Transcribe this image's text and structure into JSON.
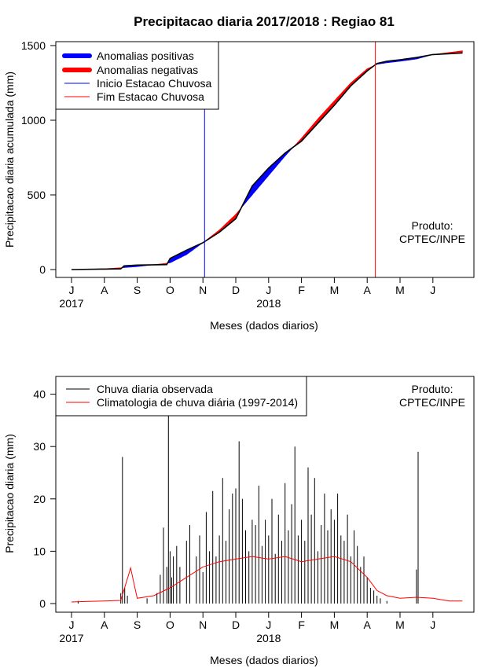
{
  "title": "Precipitacao diaria 2017/2018 : Regiao 81",
  "chart_data": [
    {
      "id": "top",
      "type": "area",
      "ylabel": "Precipitacao diaria acumulada (mm)",
      "xlabel": "Meses (dados diarios)",
      "ylim": [
        0,
        1500
      ],
      "yticks": [
        0,
        500,
        1000,
        1500
      ],
      "month_ticks": [
        "J",
        "A",
        "S",
        "O",
        "N",
        "D",
        "J",
        "F",
        "M",
        "A",
        "M",
        "J"
      ],
      "year_labels": [
        "2017",
        "2018"
      ],
      "legend": {
        "position": "top-left",
        "entries": [
          {
            "label": "Anomalias positivas",
            "color": "#0000ff",
            "kind": "thick"
          },
          {
            "label": "Anomalias negativas",
            "color": "#ff0000",
            "kind": "thick"
          },
          {
            "label": "Inicio Estacao Chuvosa",
            "color": "#0000ff",
            "kind": "thin"
          },
          {
            "label": "Fim Estacao Chuvosa",
            "color": "#ff0000",
            "kind": "thin"
          }
        ]
      },
      "annotation": [
        "Produto:",
        "CPTEC/INPE"
      ],
      "rainy_season_start_month": 4.05,
      "rainy_season_end_month": 9.25,
      "series": [
        {
          "name": "Observada acumulada",
          "x": [
            0,
            1,
            1.5,
            1.6,
            2,
            2.9,
            3,
            3.5,
            4,
            4.5,
            5,
            5.5,
            6,
            6.5,
            7,
            7.5,
            8,
            8.5,
            9,
            9.3,
            9.6,
            10,
            10.5,
            11,
            11.9
          ],
          "values": [
            0,
            3,
            5,
            25,
            30,
            33,
            75,
            130,
            180,
            250,
            340,
            560,
            680,
            780,
            860,
            980,
            1100,
            1230,
            1330,
            1380,
            1395,
            1405,
            1420,
            1440,
            1450
          ]
        },
        {
          "name": "Climatologia acumulada",
          "x": [
            0,
            1,
            1.5,
            2,
            3,
            3.5,
            4,
            4.5,
            5,
            5.5,
            6,
            6.5,
            7,
            7.5,
            8,
            8.5,
            9,
            9.3,
            9.6,
            10,
            10.5,
            11,
            11.9
          ],
          "values": [
            0,
            5,
            12,
            20,
            45,
            100,
            180,
            265,
            370,
            500,
            630,
            760,
            880,
            1010,
            1130,
            1250,
            1345,
            1375,
            1385,
            1395,
            1410,
            1440,
            1465
          ]
        }
      ]
    },
    {
      "id": "bottom",
      "type": "bar",
      "ylabel": "Precipitacao diaria (mm)",
      "xlabel": "Meses (dados diarios)",
      "ylim": [
        0,
        40
      ],
      "yticks": [
        0,
        10,
        20,
        30,
        40
      ],
      "month_ticks": [
        "J",
        "A",
        "S",
        "O",
        "N",
        "D",
        "J",
        "F",
        "M",
        "A",
        "M",
        "J"
      ],
      "year_labels": [
        "2017",
        "2018"
      ],
      "legend": {
        "position": "top-left",
        "entries": [
          {
            "label": "Chuva diaria observada",
            "color": "#000000",
            "kind": "thin"
          },
          {
            "label": "Climatologia de chuva diária (1997-2014)",
            "color": "#ff0000",
            "kind": "thin"
          }
        ]
      },
      "annotation": [
        "Produto:",
        "CPTEC/INPE"
      ],
      "series": [
        {
          "name": "Chuva diaria observada",
          "x": [
            0.2,
            1.5,
            1.55,
            1.62,
            1.7,
            2.3,
            2.6,
            2.7,
            2.8,
            2.9,
            2.95,
            3.0,
            3.05,
            3.1,
            3.2,
            3.3,
            3.5,
            3.6,
            3.8,
            3.9,
            4.0,
            4.1,
            4.2,
            4.3,
            4.4,
            4.5,
            4.6,
            4.7,
            4.8,
            4.9,
            5.0,
            5.1,
            5.2,
            5.3,
            5.4,
            5.5,
            5.6,
            5.7,
            5.8,
            5.9,
            6.0,
            6.1,
            6.2,
            6.3,
            6.4,
            6.5,
            6.6,
            6.7,
            6.8,
            6.9,
            7.0,
            7.1,
            7.2,
            7.3,
            7.4,
            7.5,
            7.6,
            7.7,
            7.8,
            7.9,
            8.0,
            8.1,
            8.2,
            8.3,
            8.4,
            8.5,
            8.6,
            8.7,
            8.8,
            8.9,
            9.0,
            9.1,
            9.2,
            9.3,
            9.4,
            9.6,
            10.5,
            10.55
          ],
          "values": [
            0.5,
            2,
            28,
            3,
            1.5,
            1,
            2,
            5.5,
            14.5,
            7,
            36,
            10,
            5,
            9,
            11,
            7,
            12,
            15,
            9,
            13,
            6,
            17.5,
            10,
            21.5,
            9,
            13,
            24,
            12,
            18,
            21,
            22,
            31,
            20,
            14,
            10,
            16,
            15,
            22.5,
            11,
            16,
            13,
            20,
            9.5,
            17,
            12,
            23,
            14,
            19,
            30,
            13,
            16,
            12,
            26,
            17,
            24,
            10,
            15,
            21,
            14,
            18,
            16,
            21,
            13,
            12,
            17,
            9,
            14,
            11,
            7,
            9,
            5,
            3,
            2.5,
            1.5,
            1,
            0.5,
            6.5,
            29
          ]
        },
        {
          "name": "Climatologia de chuva diária (1997-2014)",
          "x": [
            0,
            0.5,
            1,
            1.5,
            1.8,
            2,
            2.5,
            3,
            3.5,
            4,
            4.5,
            5,
            5.5,
            6,
            6.5,
            7,
            7.5,
            8,
            8.5,
            9,
            9.3,
            9.6,
            10,
            10.5,
            11,
            11.5,
            11.9
          ],
          "values": [
            0.3,
            0.4,
            0.5,
            0.6,
            6.8,
            1,
            1.5,
            3,
            5,
            7,
            8,
            8.5,
            9,
            8.5,
            9,
            8,
            8.5,
            9,
            8,
            5,
            2.5,
            1.5,
            1,
            1.2,
            1,
            0.5,
            0.5
          ]
        }
      ]
    }
  ]
}
